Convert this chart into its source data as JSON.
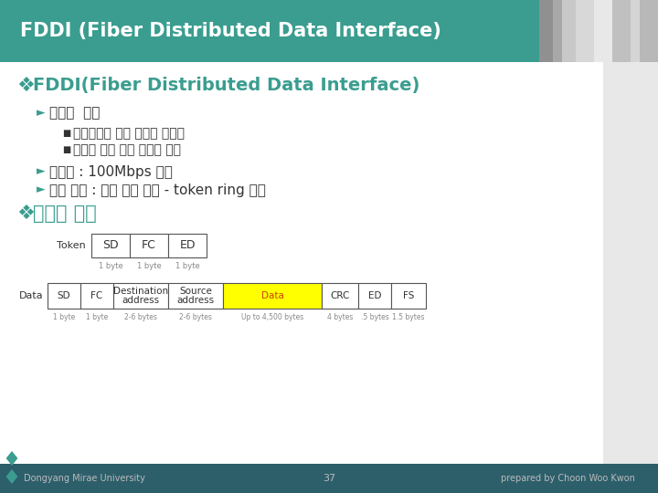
{
  "title": "FDDI (Fiber Distributed Data Interface)",
  "title_bg_color": "#3a9d8f",
  "title_text_color": "#ffffff",
  "bg_color": "#f2f2f2",
  "content_bg": "#ffffff",
  "right_bg": "#d8d8d8",
  "footer_bg_color": "#2d5f6b",
  "footer_text": "Dongyang Mirae University",
  "footer_page": "37",
  "footer_right": "prepared by Choon Woo Kwon",
  "teal_color": "#3a9d8f",
  "dark_teal": "#2d5f6b",
  "text_color": "#333333",
  "main_title": "FDDI(Fiber Distributed Data Interface)",
  "bullet1": "광섬유  사용",
  "sub1": "전기신호를 빛의 폄스로 부호화",
  "sub2": "이더넷 보다 높은 대역폭 제공",
  "bullet2": "전송률 : 100Mbps 지원",
  "bullet3": "전송 방법 : 토큰 전송 방식 - token ring 기술",
  "frame_title": "프레임 형식",
  "token_label": "Token",
  "token_fields": [
    "SD",
    "FC",
    "ED"
  ],
  "token_sizes": [
    "1 byte",
    "1 byte",
    "1 byte"
  ],
  "data_label": "Data",
  "data_fields": [
    "SD",
    "FC",
    "Destination\naddress",
    "Source\naddress",
    "Data",
    "CRC",
    "ED",
    "FS"
  ],
  "data_sizes": [
    "1 byte",
    "1 byte",
    "2-6 bytes",
    "2-6 bytes",
    "Up to 4,500 bytes",
    "4 bytes",
    ".5 bytes",
    "1.5 bytes"
  ],
  "data_highlight_index": 4,
  "data_highlight_color": "#ffff00",
  "data_highlight_text": "#cc4400"
}
